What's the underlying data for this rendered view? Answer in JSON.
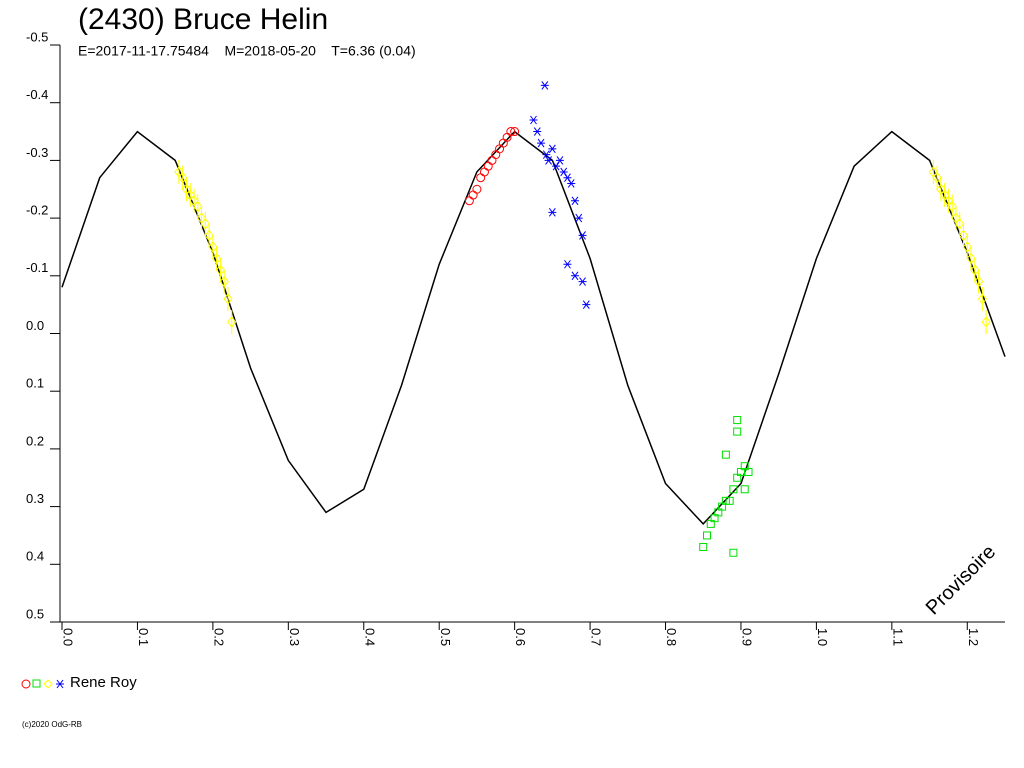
{
  "chart_data": {
    "type": "lightcurve",
    "title": "(2430) Bruce Helin",
    "subtitle": "E=2017-11-17.75484    M=2018-05-20    T=6.36 (0.04)",
    "watermark": "Provisoire",
    "footer": "(c)2020 OdG-RB",
    "legend_label": "Rene Roy",
    "xlim": [
      0,
      1.25
    ],
    "ylim": [
      0.5,
      -0.5
    ],
    "xticks": [
      {
        "value": 0,
        "label": "0.0"
      },
      0.1,
      0.2,
      0.3,
      0.4,
      0.5,
      0.6,
      0.7,
      0.8,
      0.9,
      {
        "value": 1,
        "label": "1.0"
      },
      1.1,
      1.2
    ],
    "yticks": [
      -0.5,
      -0.4,
      -0.3,
      -0.2,
      -0.1,
      {
        "value": 0,
        "label": "0.0"
      },
      0.1,
      0.2,
      0.3,
      0.4,
      0.5
    ],
    "fit": {
      "color": "#000000",
      "x": [
        0,
        0.05,
        0.1,
        0.15,
        0.2,
        0.25,
        0.3,
        0.35,
        0.4,
        0.45,
        0.5,
        0.55,
        0.6,
        0.65,
        0.7,
        0.75,
        0.8,
        0.85,
        0.9,
        0.95,
        1.0,
        1.05,
        1.1,
        1.15,
        1.2,
        1.25
      ],
      "values": [
        -0.08,
        -0.27,
        -0.35,
        -0.3,
        -0.14,
        0.06,
        0.22,
        0.31,
        0.27,
        0.09,
        -0.12,
        -0.28,
        -0.35,
        -0.3,
        -0.13,
        0.09,
        0.26,
        0.33,
        0.26,
        0.07,
        -0.13,
        -0.29,
        -0.35,
        -0.3,
        -0.14,
        0.04
      ]
    },
    "series": [
      {
        "color": "#ff0000",
        "marker": "circle",
        "x": [
          0.54,
          0.545,
          0.55,
          0.555,
          0.56,
          0.565,
          0.57,
          0.575,
          0.58,
          0.585,
          0.59,
          0.595,
          0.6
        ],
        "values": [
          -0.23,
          -0.24,
          -0.25,
          -0.27,
          -0.28,
          -0.29,
          -0.3,
          -0.31,
          -0.32,
          -0.33,
          -0.34,
          -0.35,
          -0.35
        ]
      },
      {
        "color": "#00e000",
        "marker": "square",
        "x": [
          0.85,
          0.855,
          0.86,
          0.865,
          0.87,
          0.875,
          0.88,
          0.885,
          0.89,
          0.895,
          0.9,
          0.905,
          0.91,
          0.88,
          0.895,
          0.895,
          0.89,
          0.905
        ],
        "values": [
          0.37,
          0.35,
          0.33,
          0.32,
          0.31,
          0.3,
          0.29,
          0.29,
          0.27,
          0.25,
          0.24,
          0.23,
          0.24,
          0.21,
          0.15,
          0.17,
          0.38,
          0.27
        ]
      },
      {
        "color": "#ffff00",
        "marker": "diamond",
        "x": [
          0.155,
          0.16,
          0.165,
          0.17,
          0.175,
          0.18,
          0.185,
          0.19,
          0.195,
          0.2,
          0.205,
          0.21,
          0.215,
          0.22,
          0.225,
          1.155,
          1.16,
          1.165,
          1.17,
          1.175,
          1.18,
          1.185,
          1.19,
          1.195,
          1.2,
          1.205,
          1.21,
          1.215,
          1.22,
          1.225
        ],
        "values": [
          -0.28,
          -0.27,
          -0.25,
          -0.24,
          -0.23,
          -0.22,
          -0.2,
          -0.19,
          -0.17,
          -0.15,
          -0.13,
          -0.11,
          -0.09,
          -0.06,
          -0.02,
          -0.28,
          -0.27,
          -0.25,
          -0.24,
          -0.23,
          -0.22,
          -0.2,
          -0.19,
          -0.17,
          -0.15,
          -0.13,
          -0.11,
          -0.09,
          -0.06,
          -0.02
        ]
      },
      {
        "color": "#0000ff",
        "marker": "star",
        "x": [
          0.625,
          0.63,
          0.635,
          0.64,
          0.642,
          0.645,
          0.65,
          0.655,
          0.66,
          0.665,
          0.67,
          0.675,
          0.68,
          0.685,
          0.69,
          0.695,
          0.67,
          0.68,
          0.69,
          0.65
        ],
        "values": [
          -0.37,
          -0.35,
          -0.33,
          -0.43,
          -0.31,
          -0.3,
          -0.32,
          -0.29,
          -0.3,
          -0.28,
          -0.27,
          -0.26,
          -0.23,
          -0.2,
          -0.17,
          -0.05,
          -0.12,
          -0.1,
          -0.09,
          -0.21
        ]
      }
    ]
  }
}
